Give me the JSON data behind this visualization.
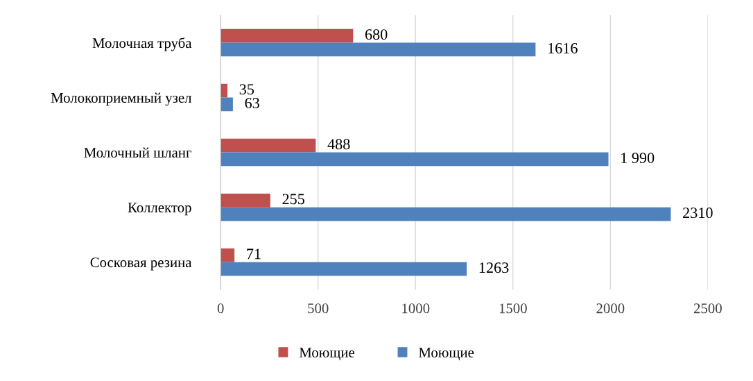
{
  "chart_data": {
    "type": "bar",
    "orientation": "horizontal",
    "categories": [
      "Молочная труба",
      "Молокоприемный узел",
      "Молочный шланг",
      "Коллектор",
      "Сосковая резина"
    ],
    "series": [
      {
        "name": "Моющие",
        "color": "#c0504d",
        "values": [
          680,
          35,
          488,
          255,
          71
        ],
        "value_labels": [
          "680",
          "35",
          "488",
          "255",
          "71"
        ]
      },
      {
        "name": "Моющие",
        "color": "#4f81bd",
        "values": [
          1616,
          63,
          1990,
          2310,
          1263
        ],
        "value_labels": [
          "1616",
          "63",
          "1 990",
          "2310",
          "1263"
        ]
      }
    ],
    "xlim": [
      0,
      2500
    ],
    "xticks": [
      0,
      500,
      1000,
      1500,
      2000,
      2500
    ],
    "grid": "x",
    "legend": "bottom"
  }
}
